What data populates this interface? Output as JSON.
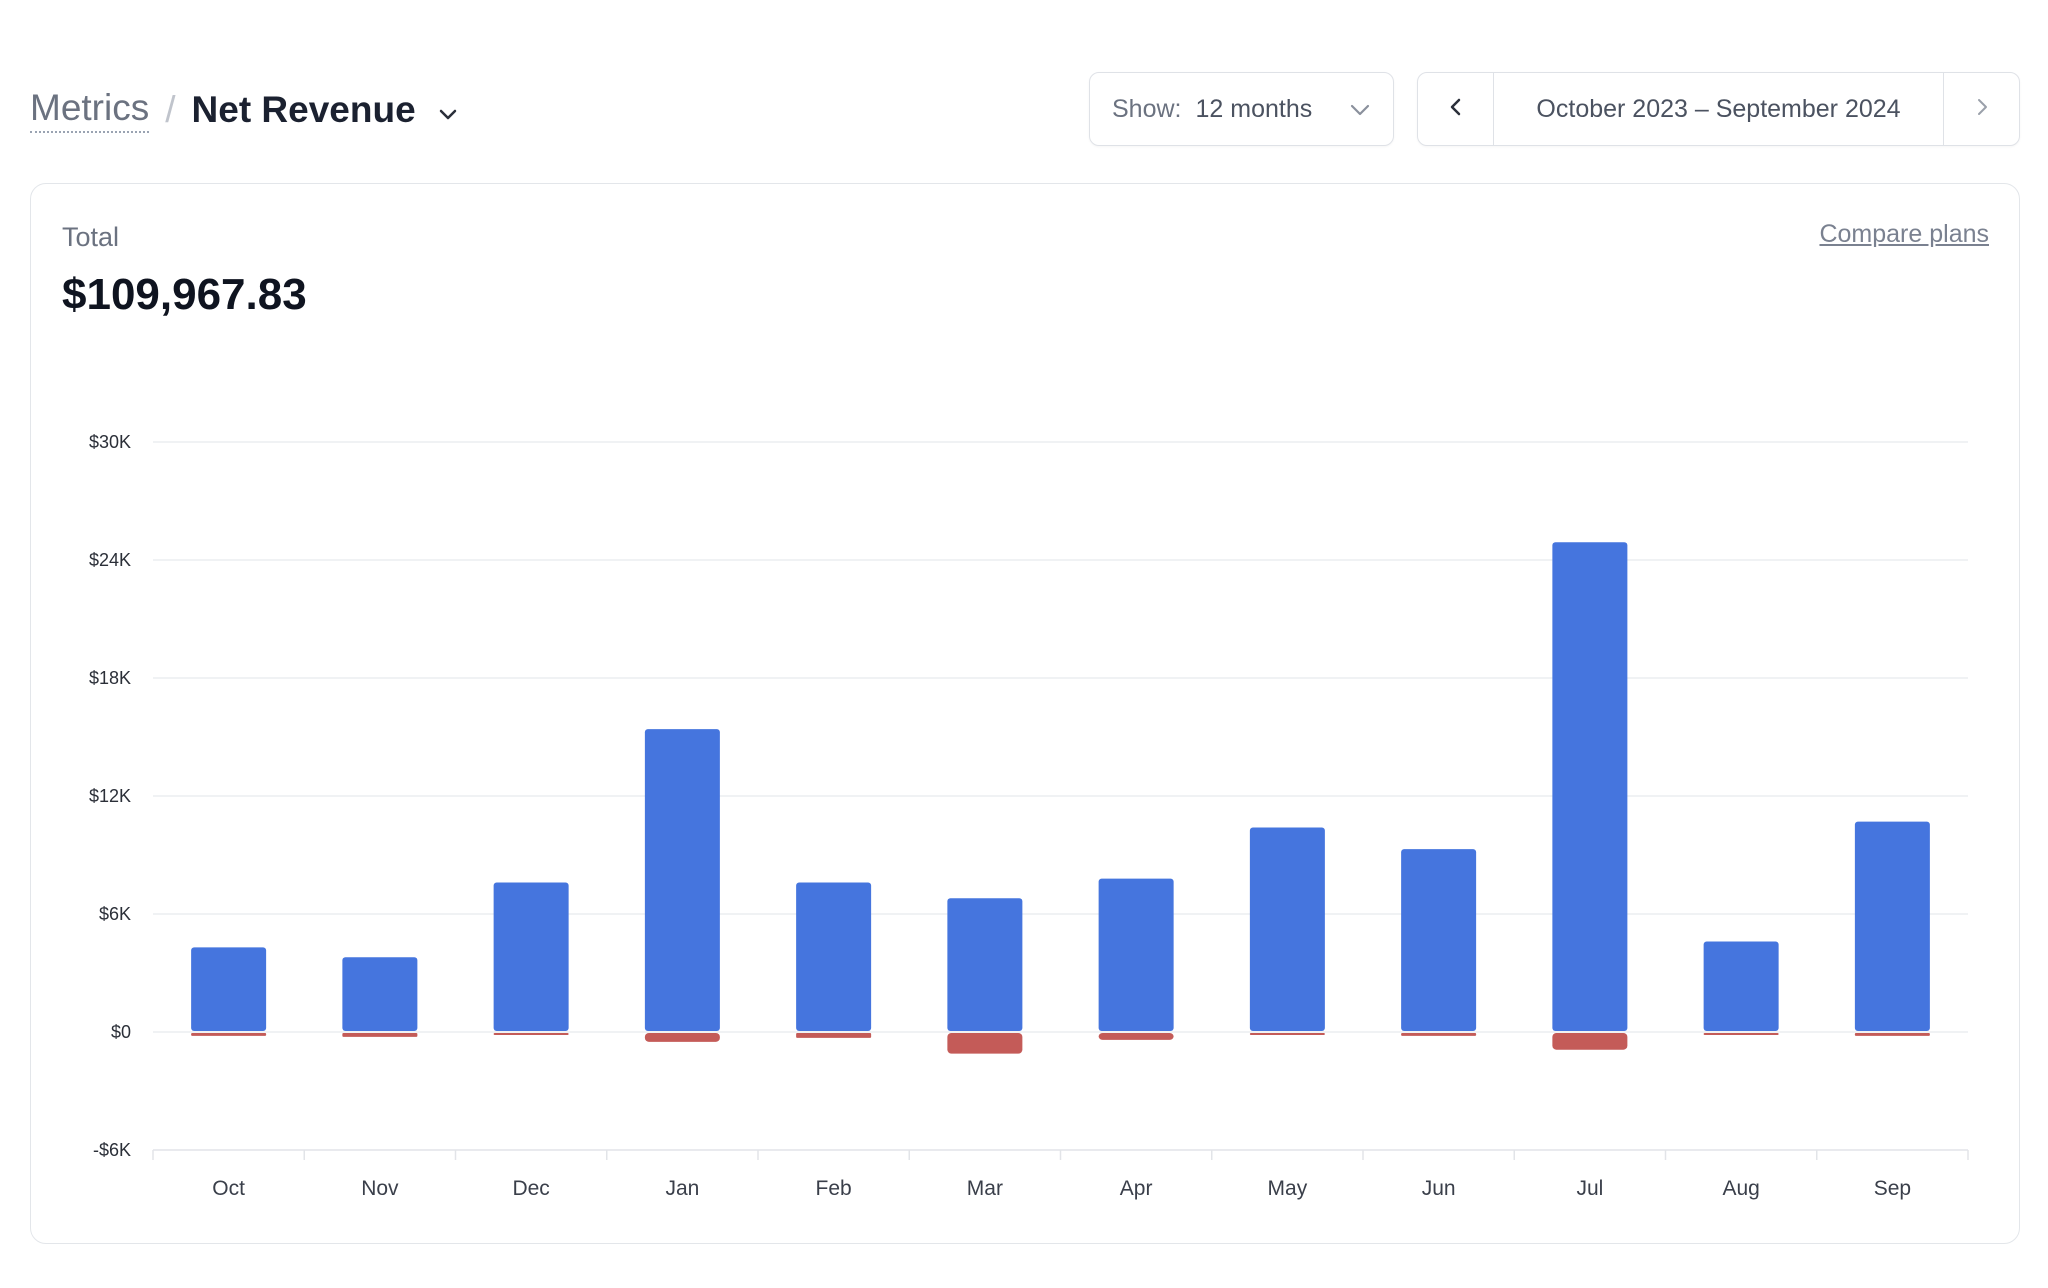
{
  "header": {
    "breadcrumb_parent": "Metrics",
    "separator": "/",
    "title": "Net Revenue",
    "title_icon": "chevron-down-icon"
  },
  "show_select": {
    "label": "Show:",
    "value": "12 months",
    "icon": "chevron-down-icon"
  },
  "date_range": {
    "label": "October 2023 – September 2024",
    "prev_icon": "chevron-left-icon",
    "next_icon": "chevron-right-icon"
  },
  "summary": {
    "total_label": "Total",
    "total_value": "$109,967.83",
    "compare_link": "Compare plans"
  },
  "colors": {
    "positive": "#4575de",
    "negative": "#c45b58",
    "gridline": "#eceef1",
    "axis": "#e2e4e8"
  },
  "chart_data": {
    "type": "bar",
    "stacked": true,
    "categories": [
      "Oct",
      "Nov",
      "Dec",
      "Jan",
      "Feb",
      "Mar",
      "Apr",
      "May",
      "Jun",
      "Jul",
      "Aug",
      "Sep"
    ],
    "series": [
      {
        "values": [
          4300,
          3800,
          7600,
          15400,
          7600,
          6800,
          7800,
          10400,
          9300,
          24900,
          4600,
          10700
        ]
      },
      {
        "values": [
          -200,
          -250,
          -100,
          -500,
          -300,
          -1100,
          -400,
          -20,
          -200,
          -900,
          -100,
          -200
        ]
      }
    ],
    "ylim": [
      -6000,
      30000
    ],
    "yticks": [
      {
        "value": 30000,
        "label": "$30K"
      },
      {
        "value": 24000,
        "label": "$24K"
      },
      {
        "value": 18000,
        "label": "$18K"
      },
      {
        "value": 12000,
        "label": "$12K"
      },
      {
        "value": 6000,
        "label": "$6K"
      },
      {
        "value": 0,
        "label": "$0"
      },
      {
        "value": -6000,
        "label": "-$6K"
      }
    ],
    "grid": true,
    "xlabel": "",
    "ylabel": ""
  }
}
